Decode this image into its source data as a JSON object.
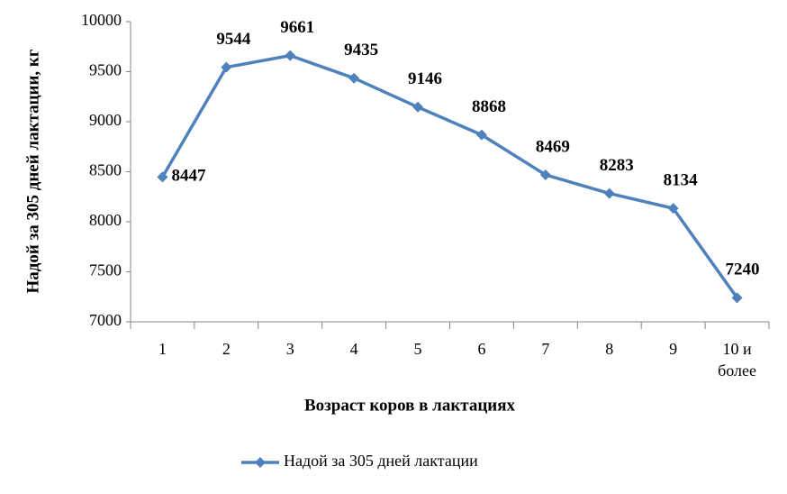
{
  "chart_data": {
    "type": "line",
    "x_label": "Возраст коров в лактациях",
    "y_label": "Надой за 305 дней лактации, кг",
    "categories": [
      "1",
      "2",
      "3",
      "4",
      "5",
      "6",
      "7",
      "8",
      "9",
      "10 и более"
    ],
    "series": [
      {
        "name": "Надой за 305 дней лактации",
        "color": "#4f81bd",
        "values": [
          8447,
          9544,
          9661,
          9435,
          9146,
          8868,
          8469,
          8283,
          8134,
          7240
        ]
      }
    ],
    "ylim": [
      7000,
      10000
    ],
    "yticks": [
      7000,
      7500,
      8000,
      8500,
      9000,
      9500,
      10000
    ],
    "grid": false,
    "legend": "bottom"
  }
}
